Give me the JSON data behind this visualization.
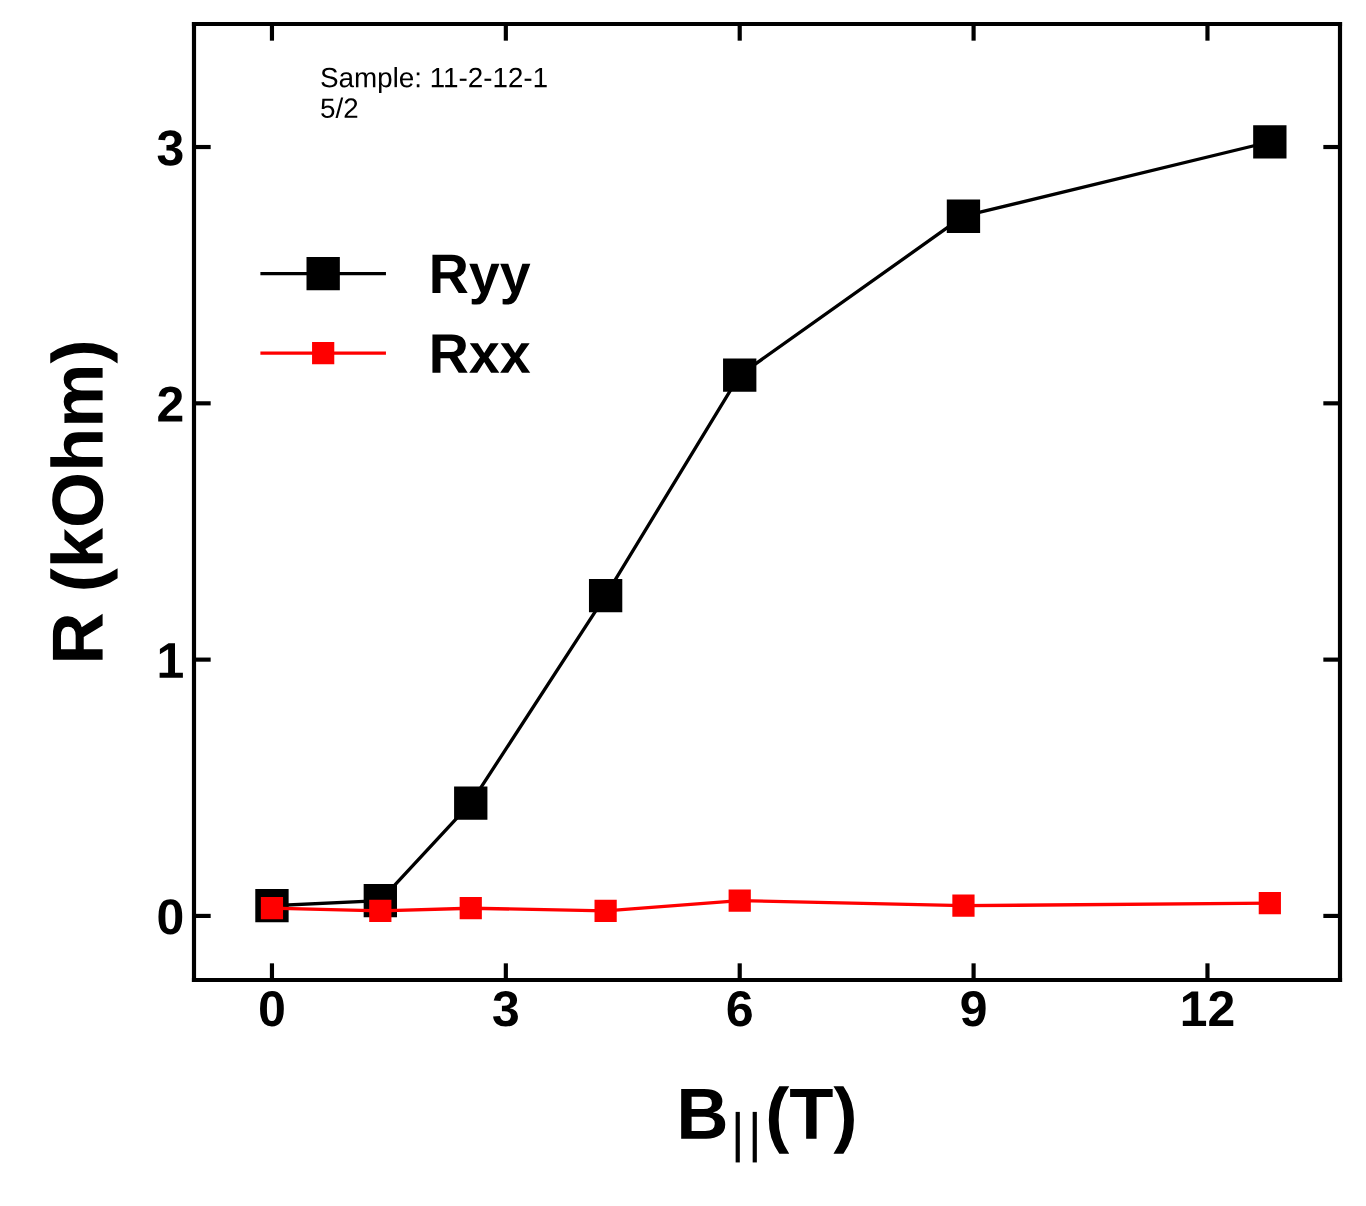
{
  "chart_data": {
    "type": "line",
    "xlabel": "B$_{||}$(T)",
    "ylabel": "R (kOhm)",
    "annotations": [
      "Sample: 11-2-12-1",
      "5/2"
    ],
    "series": [
      {
        "name": "Ryy",
        "color": "#000000",
        "x": [
          0,
          1.39,
          2.55,
          4.28,
          6.0,
          8.87,
          12.8
        ],
        "values": [
          0.04,
          0.06,
          0.44,
          1.25,
          2.11,
          2.73,
          3.02
        ]
      },
      {
        "name": "Rxx",
        "color": "#ff0000",
        "x": [
          0,
          1.39,
          2.55,
          4.28,
          6.0,
          8.87,
          12.8
        ],
        "values": [
          0.03,
          0.02,
          0.03,
          0.02,
          0.06,
          0.04,
          0.05
        ]
      }
    ],
    "xlim": [
      -1,
      13.7
    ],
    "ylim": [
      -0.25,
      3.48
    ],
    "xticks": [
      0,
      3,
      6,
      9,
      12
    ],
    "yticks": [
      0,
      1,
      2,
      3
    ],
    "marker": "square",
    "line_style": "solid",
    "grid": false,
    "legend": "top left"
  }
}
